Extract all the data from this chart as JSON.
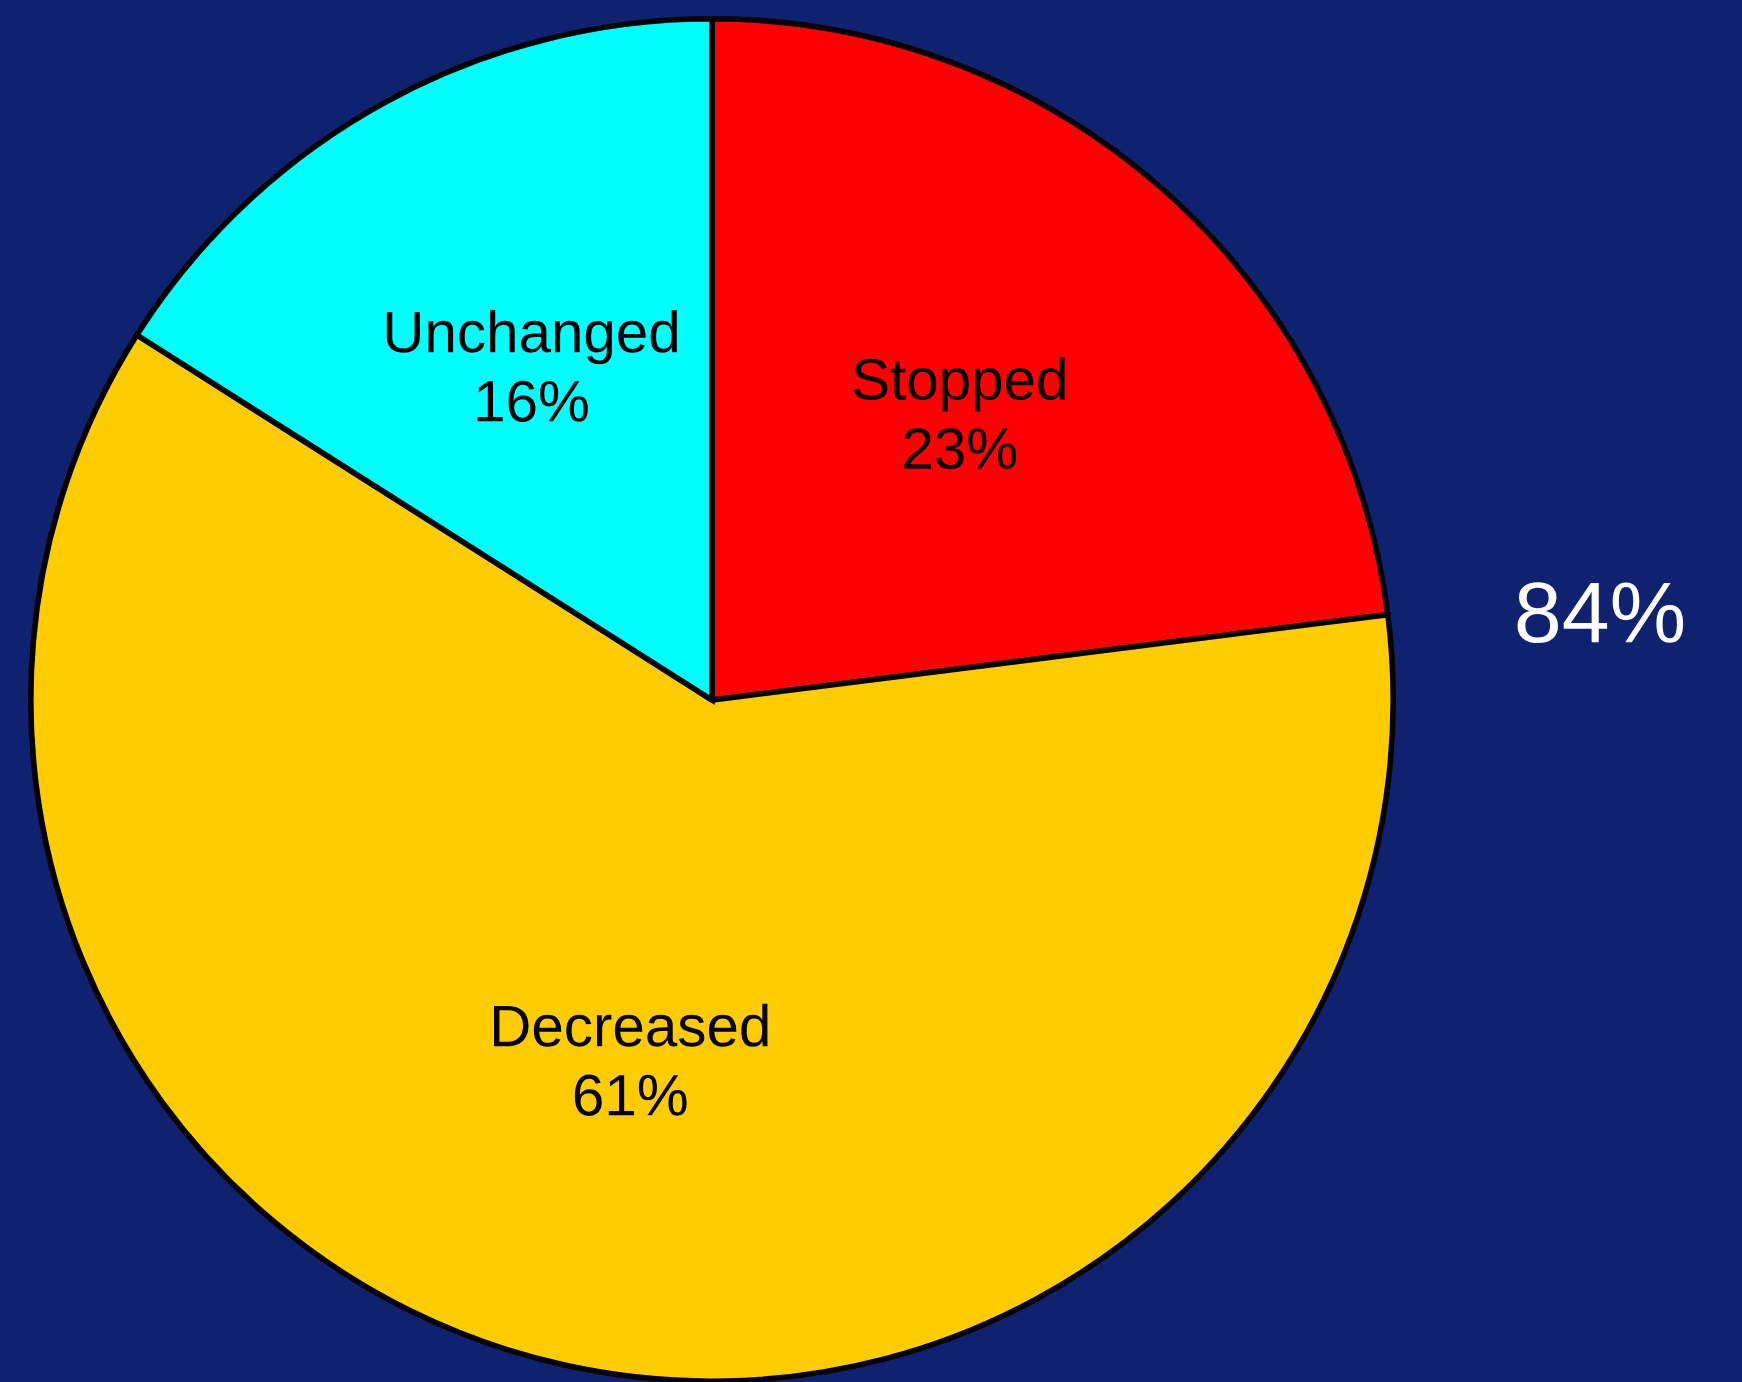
{
  "chart_data": {
    "type": "pie",
    "categories": [
      "Stopped",
      "Decreased",
      "Unchanged"
    ],
    "values": [
      23,
      61,
      16
    ],
    "colors": [
      "#ff0000",
      "#ffcc00",
      "#00ffff"
    ],
    "value_labels": [
      "23%",
      "61%",
      "16%"
    ],
    "annotations": [
      "84%"
    ],
    "legend": false
  }
}
